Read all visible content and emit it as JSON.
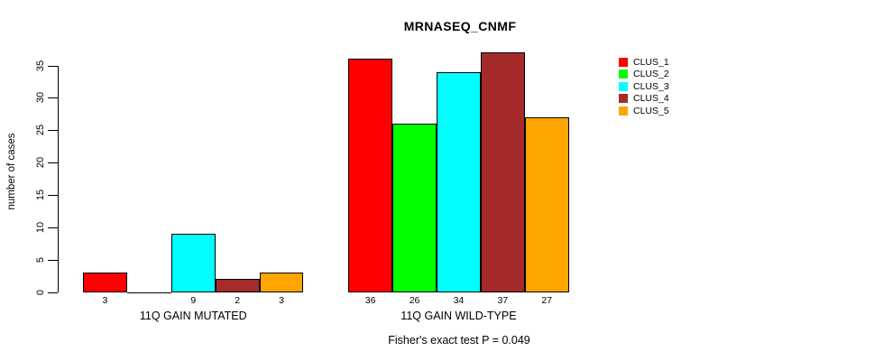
{
  "chart_data": {
    "type": "bar",
    "title": "MRNASEQ_CNMF",
    "ylabel": "number of cases",
    "xlabel": "",
    "ylim": [
      0,
      35
    ],
    "yticks": [
      0,
      5,
      10,
      15,
      20,
      25,
      30,
      35
    ],
    "grid": false,
    "legend_position": "right",
    "categories": [
      "11Q GAIN MUTATED",
      "11Q GAIN WILD-TYPE"
    ],
    "series": [
      {
        "name": "CLUS_1",
        "color": "#FF0000",
        "values": [
          3,
          36
        ]
      },
      {
        "name": "CLUS_2",
        "color": "#00FF00",
        "values": [
          0,
          26
        ]
      },
      {
        "name": "CLUS_3",
        "color": "#00FFFF",
        "values": [
          9,
          34
        ]
      },
      {
        "name": "CLUS_4",
        "color": "#A52A2A",
        "values": [
          2,
          37
        ]
      },
      {
        "name": "CLUS_5",
        "color": "#FFA500",
        "values": [
          3,
          27
        ]
      }
    ],
    "bar_value_labels": {
      "11Q GAIN MUTATED": [
        "3",
        "",
        "9",
        "2",
        "3"
      ],
      "11Q GAIN WILD-TYPE": [
        "36",
        "26",
        "34",
        "37",
        "27"
      ]
    },
    "annotation": "Fisher's exact test P = 0.049"
  },
  "legend": {
    "items": [
      {
        "label": "CLUS_1",
        "color": "#FF0000"
      },
      {
        "label": "CLUS_2",
        "color": "#00FF00"
      },
      {
        "label": "CLUS_3",
        "color": "#00FFFF"
      },
      {
        "label": "CLUS_4",
        "color": "#A52A2A"
      },
      {
        "label": "CLUS_5",
        "color": "#FFA500"
      }
    ]
  }
}
